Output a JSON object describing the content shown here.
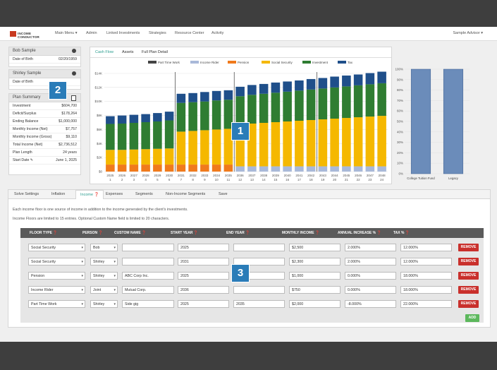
{
  "brand": {
    "name": "INCOME CONDUCTOR"
  },
  "nav": {
    "items": [
      "Main Menu ▾",
      "Admin",
      "Linked Investments",
      "Strategies",
      "Resource Center",
      "Activity"
    ],
    "user": "Sample Advisor ▾"
  },
  "clients": [
    {
      "name": "Bob Sample",
      "dob_label": "Date of Birth",
      "dob": "02/20/1959"
    },
    {
      "name": "Shirley Sample",
      "dob_label": "Date of Birth",
      "dob": ""
    }
  ],
  "summary": {
    "title": "Plan Summary",
    "rows": [
      {
        "k": "Investment",
        "v": "$604,700"
      },
      {
        "k": "Deficit/Surplus",
        "v": "$178,264"
      },
      {
        "k": "Ending Balance",
        "v": "$1,000,000"
      },
      {
        "k": "Monthly Income (Net)",
        "v": "$7,757"
      },
      {
        "k": "Monthly Income (Gross)",
        "v": "$9,110"
      },
      {
        "k": "Total Income (Net)",
        "v": "$2,736,512"
      },
      {
        "k": "Plan Length",
        "v": "24 years"
      },
      {
        "k": "Start Date ✎",
        "v": "June 1, 2025"
      }
    ]
  },
  "chart_tabs": [
    "Cash Flow",
    "Assets",
    "Full Plan Detail"
  ],
  "badges": [
    "1",
    "2",
    "3"
  ],
  "chart_data": [
    {
      "type": "bar",
      "stacked": true,
      "legend_position": "top",
      "ylim": [
        0,
        14000
      ],
      "yticks": [
        "$0",
        "$2K",
        "$4K",
        "$6K",
        "$8K",
        "$10K",
        "$12K",
        "$14K"
      ],
      "categories": [
        "2025 1",
        "2026 2",
        "2027 3",
        "2028 4",
        "2029 5",
        "2030 6",
        "2031 7",
        "2032 8",
        "2033 9",
        "2034 10",
        "2035 11",
        "2036 12",
        "2037 13",
        "2038 14",
        "2039 15",
        "2040 16",
        "2041 17",
        "2042 18",
        "2043 19",
        "2044 20",
        "2045 21",
        "2046 22",
        "2047 23",
        "2048 24"
      ],
      "series": [
        {
          "name": "Part Time Work",
          "color": "#444444",
          "values": [
            0,
            0,
            0,
            0,
            0,
            0,
            0,
            0,
            0,
            0,
            0,
            0,
            0,
            0,
            0,
            0,
            0,
            0,
            0,
            0,
            0,
            0,
            0,
            0
          ]
        },
        {
          "name": "Income Rider",
          "color": "#a9b9d9",
          "values": [
            0,
            0,
            0,
            0,
            0,
            0,
            0,
            0,
            0,
            0,
            0,
            750,
            750,
            750,
            750,
            750,
            750,
            750,
            750,
            750,
            750,
            750,
            750,
            750
          ]
        },
        {
          "name": "Pension",
          "color": "#f07a1c",
          "values": [
            1000,
            1000,
            1000,
            1000,
            1000,
            1000,
            1000,
            1000,
            1000,
            1000,
            1000,
            0,
            0,
            0,
            0,
            0,
            0,
            0,
            0,
            0,
            0,
            0,
            0,
            0
          ]
        },
        {
          "name": "Social Security",
          "color": "#f5b800",
          "values": [
            2100,
            2100,
            2150,
            2200,
            2250,
            2300,
            4700,
            4800,
            4900,
            5000,
            5100,
            6000,
            6100,
            6200,
            6300,
            6400,
            6500,
            6600,
            6700,
            6800,
            6900,
            7000,
            7100,
            7200
          ]
        },
        {
          "name": "Investment",
          "color": "#2f7d32",
          "values": [
            3700,
            3750,
            3800,
            3850,
            3900,
            4000,
            4100,
            4100,
            4100,
            4150,
            4150,
            4000,
            4100,
            4150,
            4200,
            4250,
            4300,
            4350,
            4400,
            4450,
            4500,
            4550,
            4600,
            4650
          ]
        },
        {
          "name": "Tax",
          "color": "#1f4f8a",
          "values": [
            1100,
            1150,
            1150,
            1150,
            1200,
            1250,
            1300,
            1300,
            1350,
            1350,
            1350,
            1350,
            1400,
            1400,
            1450,
            1450,
            1450,
            1500,
            1500,
            1550,
            1550,
            1550,
            1600,
            1650
          ]
        }
      ]
    },
    {
      "type": "bar",
      "ylim": [
        0,
        100
      ],
      "yticks": [
        "0%",
        "10%",
        "20%",
        "30%",
        "40%",
        "50%",
        "60%",
        "70%",
        "80%",
        "90%",
        "100%"
      ],
      "categories": [
        "College Tuition Fund",
        "Legacy"
      ],
      "values": [
        100,
        100
      ],
      "color": "#6b8cba"
    }
  ],
  "settings": {
    "tabs": [
      "Solve Settings",
      "Inflation",
      "Income ❓",
      "Expenses",
      "Segments",
      "Non-Income Segments",
      "Save"
    ],
    "note1": "Each income floor is one source of income in addition to the income generated by the client's investments.",
    "note2": "Income Floors are limited to 15 entries. Optional Custom Name field is limited to 20 characters.",
    "columns": [
      "FLOOR TYPE ❓",
      "PERSON ❓",
      "CUSTOM NAME ❓",
      "START YEAR ❓",
      "END YEAR ❓",
      "MONTHLY INCOME ❓",
      "ANNUAL INCREASE % ❓",
      "TAX % ❓"
    ],
    "rows": [
      {
        "type": "Social Security",
        "person": "Bob",
        "name": "",
        "start": "2025",
        "end": "",
        "monthly": "$2,500",
        "increase": "2.000%",
        "tax": "12.000%"
      },
      {
        "type": "Social Security",
        "person": "Shirley",
        "name": "",
        "start": "2031",
        "end": "",
        "monthly": "$2,300",
        "increase": "2.000%",
        "tax": "12.000%"
      },
      {
        "type": "Pension",
        "person": "Shirley",
        "name": "ABC Corp Inc.",
        "start": "2025",
        "end": "",
        "monthly": "$1,000",
        "increase": "0.000%",
        "tax": "18.000%"
      },
      {
        "type": "Income Rider",
        "person": "Joint",
        "name": "Mutual Corp.",
        "start": "2036",
        "end": "",
        "monthly": "$750",
        "increase": "0.000%",
        "tax": "18.000%"
      },
      {
        "type": "Part Time Work",
        "person": "Shirley",
        "name": "Side gig",
        "start": "2025",
        "end": "2035",
        "monthly": "$2,000",
        "increase": "-8.000%",
        "tax": "22.000%"
      }
    ],
    "remove_label": "REMOVE",
    "add_label": "ADD"
  }
}
